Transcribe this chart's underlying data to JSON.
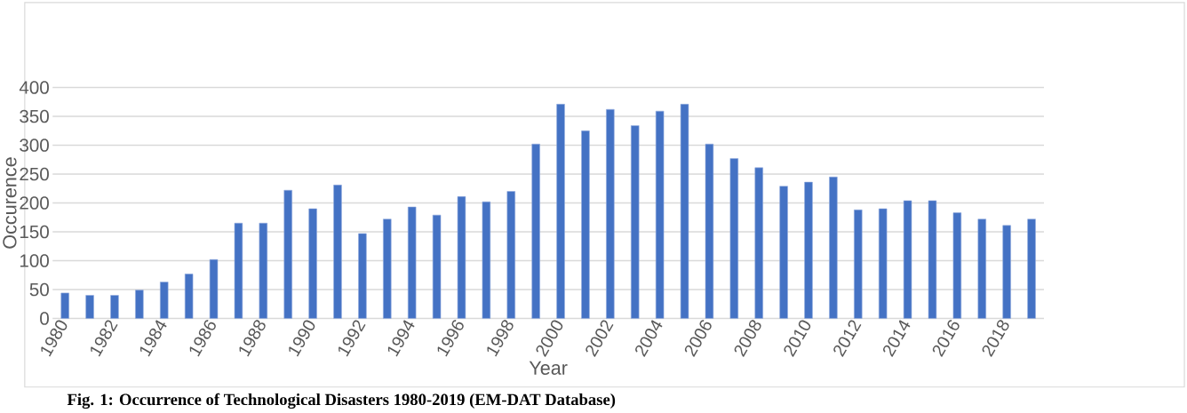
{
  "chart_data": {
    "type": "bar",
    "title": "Fig. 1: Occurrence of Technological Disasters 1980-2019 (EM-DAT Database)",
    "xlabel": "Year",
    "ylabel": "Occurence",
    "categories": [
      "1980",
      null,
      "1982",
      null,
      "1984",
      null,
      "1986",
      null,
      "1988",
      null,
      "1990",
      null,
      "1992",
      null,
      "1994",
      null,
      "1996",
      null,
      "1998",
      null,
      "2000",
      null,
      "2002",
      null,
      "2004",
      null,
      "2006",
      null,
      "2008",
      null,
      "2010",
      null,
      "2012",
      null,
      "2014",
      null,
      "2016",
      null,
      "2018",
      null
    ],
    "values": [
      44,
      40,
      40,
      49,
      63,
      77,
      102,
      165,
      165,
      222,
      190,
      231,
      147,
      172,
      193,
      179,
      211,
      202,
      220,
      302,
      371,
      325,
      362,
      334,
      359,
      371,
      302,
      277,
      261,
      229,
      236,
      245,
      188,
      190,
      204,
      204,
      183,
      172,
      161,
      172
    ],
    "color": "#4472c4",
    "ylim": [
      0,
      400
    ],
    "yticks": [
      0,
      50,
      100,
      150,
      200,
      250,
      300,
      350,
      400
    ],
    "grid": "y"
  }
}
